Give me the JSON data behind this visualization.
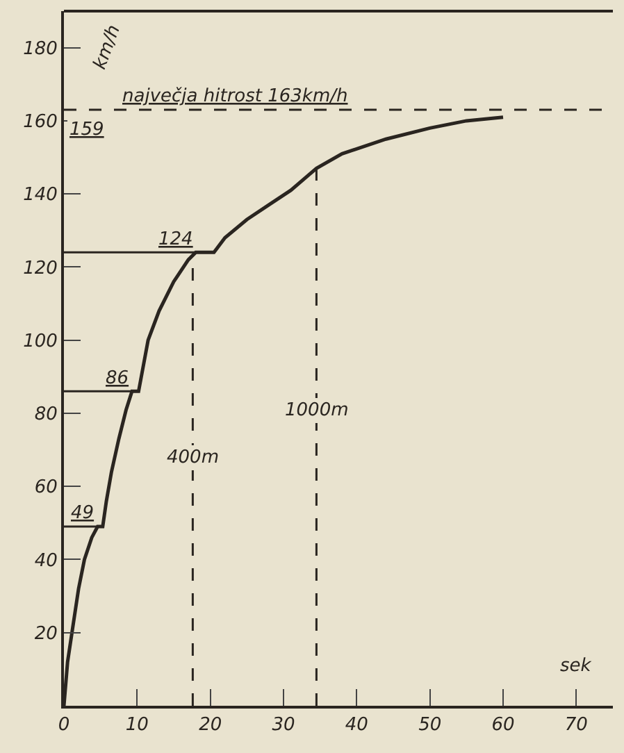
{
  "chart_data": {
    "type": "line",
    "xlabel": "sek",
    "ylabel": "km/h",
    "x": [
      0,
      0.5,
      1.1,
      2,
      2.8,
      3.8,
      4.6,
      5.3,
      5.8,
      6.5,
      7.5,
      8.5,
      9.3,
      10.2,
      11.5,
      13,
      15,
      17,
      18,
      19,
      20.5,
      22,
      25,
      28,
      31,
      34.5,
      38,
      44,
      50,
      55,
      60
    ],
    "series": [
      {
        "color": "#2a2520",
        "values": [
          0,
          12,
          20,
          32,
          40,
          46,
          49,
          49,
          56,
          64,
          73,
          81,
          86,
          86,
          100,
          108,
          116,
          122,
          124,
          124,
          124,
          128,
          133,
          137,
          141,
          147,
          151,
          155,
          158,
          160,
          161
        ]
      }
    ],
    "xlim": [
      0,
      75
    ],
    "ylim": [
      0,
      190
    ],
    "xticks": [
      0,
      10,
      20,
      30,
      40,
      50,
      60,
      70
    ],
    "yticks": [
      20,
      40,
      60,
      80,
      100,
      120,
      140,
      160,
      180
    ],
    "grid": false,
    "marker": "none",
    "line_style": "solid",
    "ref_lines": [
      {
        "axis": "y",
        "value": 163,
        "label": "največja hitrost 163km/h",
        "line_style": "dashed",
        "color": "#2a2520"
      },
      {
        "axis": "x",
        "value": 17.6,
        "label": "400m",
        "line_style": "dashed",
        "color": "#2a2520"
      },
      {
        "axis": "x",
        "value": 34.5,
        "label": "1000m",
        "line_style": "dashed",
        "color": "#2a2520"
      }
    ],
    "annotations": [
      {
        "text": "49",
        "x": 4.6,
        "y": 49
      },
      {
        "text": "86",
        "x": 9.3,
        "y": 86
      },
      {
        "text": "124",
        "x": 18,
        "y": 124
      },
      "159"
    ]
  }
}
